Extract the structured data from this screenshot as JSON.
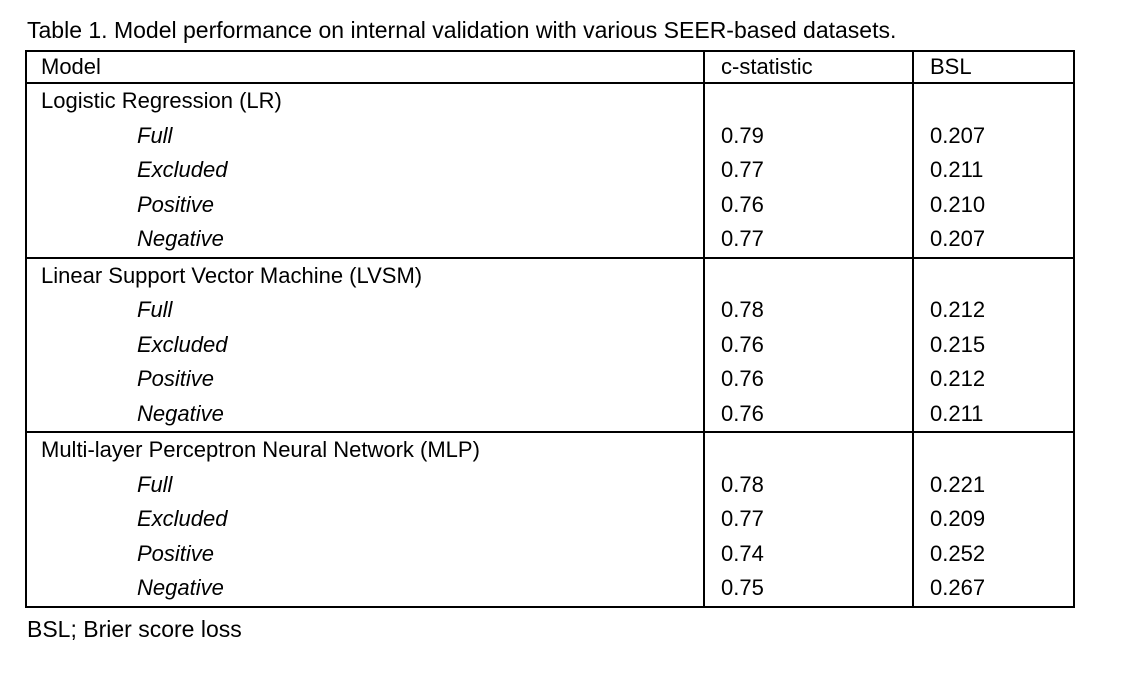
{
  "title": "Table 1. Model performance on internal validation with various SEER-based datasets.",
  "table": {
    "columns": [
      "Model",
      "c-statistic",
      "BSL"
    ],
    "sections": [
      {
        "name": "Logistic Regression (LR)",
        "rows": [
          {
            "label": "Full",
            "c_statistic": "0.79",
            "bsl": "0.207"
          },
          {
            "label": "Excluded",
            "c_statistic": "0.77",
            "bsl": "0.211"
          },
          {
            "label": "Positive",
            "c_statistic": "0.76",
            "bsl": "0.210"
          },
          {
            "label": "Negative",
            "c_statistic": "0.77",
            "bsl": "0.207"
          }
        ]
      },
      {
        "name": "Linear Support Vector Machine (LVSM)",
        "rows": [
          {
            "label": "Full",
            "c_statistic": "0.78",
            "bsl": "0.212"
          },
          {
            "label": "Excluded",
            "c_statistic": "0.76",
            "bsl": "0.215"
          },
          {
            "label": "Positive",
            "c_statistic": "0.76",
            "bsl": "0.212"
          },
          {
            "label": "Negative",
            "c_statistic": "0.76",
            "bsl": "0.211"
          }
        ]
      },
      {
        "name": "Multi-layer Perceptron Neural Network (MLP)",
        "rows": [
          {
            "label": "Full",
            "c_statistic": "0.78",
            "bsl": "0.221"
          },
          {
            "label": "Excluded",
            "c_statistic": "0.77",
            "bsl": "0.209"
          },
          {
            "label": "Positive",
            "c_statistic": "0.74",
            "bsl": "0.252"
          },
          {
            "label": "Negative",
            "c_statistic": "0.75",
            "bsl": "0.267"
          }
        ]
      }
    ]
  },
  "footnote": "BSL; Brier score loss",
  "colors": {
    "text": "#000000",
    "border": "#000000",
    "background": "#ffffff"
  }
}
